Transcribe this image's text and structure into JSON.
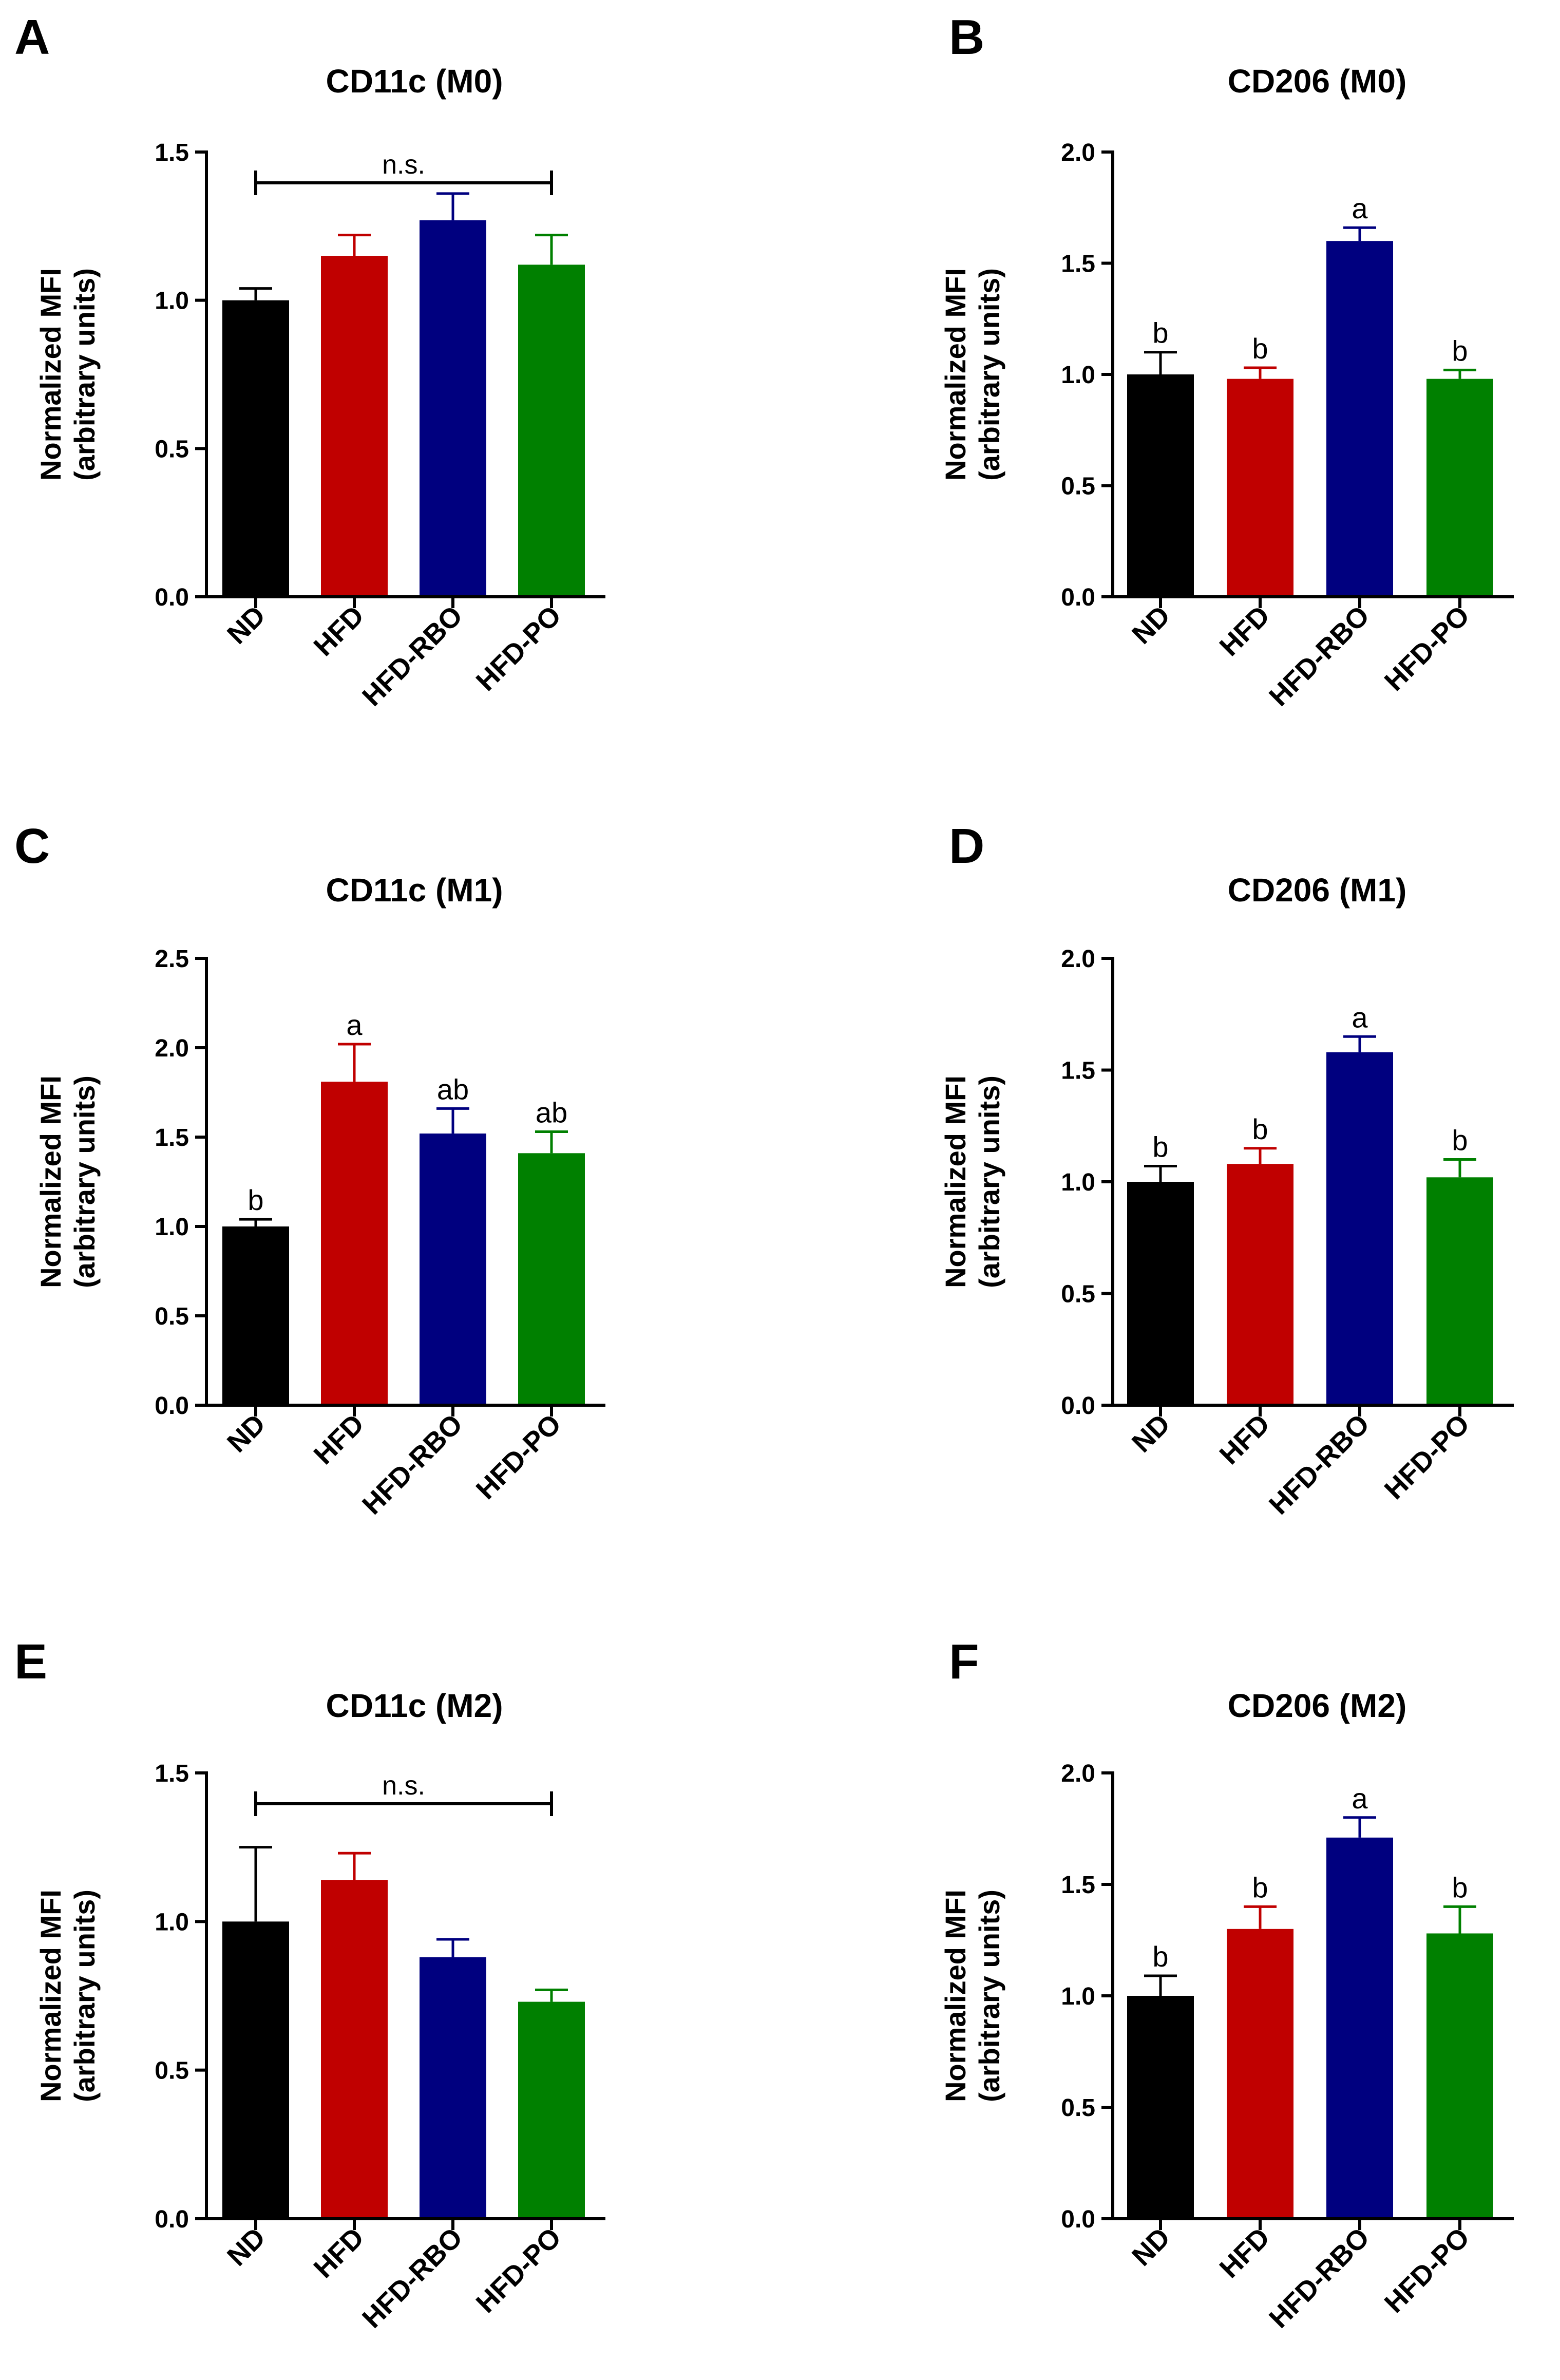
{
  "figure": {
    "panels": [
      "A",
      "B",
      "C",
      "D",
      "E",
      "F"
    ]
  },
  "colors": {
    "ND": "#000000",
    "HFD": "#c00000",
    "HFD-RBO": "#00007f",
    "HFD-PO": "#008000",
    "axis": "#000000"
  },
  "chart_data": [
    {
      "panel": "A",
      "type": "bar",
      "title": "CD11c (M0)",
      "ylabel": [
        "Normalized MFI",
        "(arbitrary units)"
      ],
      "categories": [
        "ND",
        "HFD",
        "HFD-RBO",
        "HFD-PO"
      ],
      "values": [
        1.0,
        1.15,
        1.27,
        1.12
      ],
      "errors": [
        0.04,
        0.07,
        0.09,
        0.1
      ],
      "ylim": [
        0,
        1.5
      ],
      "yticks": [
        "0.0",
        "0.5",
        "1.0",
        "1.5"
      ],
      "letters": [
        "",
        "",
        "",
        ""
      ],
      "bracket": "n.s."
    },
    {
      "panel": "B",
      "type": "bar",
      "title": "CD206 (M0)",
      "ylabel": [
        "Normalized MFI",
        "(arbitrary units)"
      ],
      "categories": [
        "ND",
        "HFD",
        "HFD-RBO",
        "HFD-PO"
      ],
      "values": [
        1.0,
        0.98,
        1.6,
        0.98
      ],
      "errors": [
        0.1,
        0.05,
        0.06,
        0.04
      ],
      "ylim": [
        0,
        2.0
      ],
      "yticks": [
        "0.0",
        "0.5",
        "1.0",
        "1.5",
        "2.0"
      ],
      "letters": [
        "b",
        "b",
        "a",
        "b"
      ],
      "bracket": ""
    },
    {
      "panel": "C",
      "type": "bar",
      "title": "CD11c (M1)",
      "ylabel": [
        "Normalized MFI",
        "(arbitrary units)"
      ],
      "categories": [
        "ND",
        "HFD",
        "HFD-RBO",
        "HFD-PO"
      ],
      "values": [
        1.0,
        1.81,
        1.52,
        1.41
      ],
      "errors": [
        0.04,
        0.21,
        0.14,
        0.12
      ],
      "ylim": [
        0,
        2.5
      ],
      "yticks": [
        "0.0",
        "0.5",
        "1.0",
        "1.5",
        "2.0",
        "2.5"
      ],
      "letters": [
        "b",
        "a",
        "ab",
        "ab"
      ],
      "bracket": ""
    },
    {
      "panel": "D",
      "type": "bar",
      "title": "CD206 (M1)",
      "ylabel": [
        "Normalized MFI",
        "(arbitrary units)"
      ],
      "categories": [
        "ND",
        "HFD",
        "HFD-RBO",
        "HFD-PO"
      ],
      "values": [
        1.0,
        1.08,
        1.58,
        1.02
      ],
      "errors": [
        0.07,
        0.07,
        0.07,
        0.08
      ],
      "ylim": [
        0,
        2.0
      ],
      "yticks": [
        "0.0",
        "0.5",
        "1.0",
        "1.5",
        "2.0"
      ],
      "letters": [
        "b",
        "b",
        "a",
        "b"
      ],
      "bracket": ""
    },
    {
      "panel": "E",
      "type": "bar",
      "title": "CD11c (M2)",
      "ylabel": [
        "Normalized MFI",
        "(arbitrary units)"
      ],
      "categories": [
        "ND",
        "HFD",
        "HFD-RBO",
        "HFD-PO"
      ],
      "values": [
        1.0,
        1.14,
        0.88,
        0.73
      ],
      "errors": [
        0.25,
        0.09,
        0.06,
        0.04
      ],
      "ylim": [
        0,
        1.5
      ],
      "yticks": [
        "0.0",
        "0.5",
        "1.0",
        "1.5"
      ],
      "letters": [
        "",
        "",
        "",
        ""
      ],
      "bracket": "n.s."
    },
    {
      "panel": "F",
      "type": "bar",
      "title": "CD206 (M2)",
      "ylabel": [
        "Normalized MFI",
        "(arbitrary units)"
      ],
      "categories": [
        "ND",
        "HFD",
        "HFD-RBO",
        "HFD-PO"
      ],
      "values": [
        1.0,
        1.3,
        1.71,
        1.28
      ],
      "errors": [
        0.09,
        0.1,
        0.09,
        0.12
      ],
      "ylim": [
        0,
        2.0
      ],
      "yticks": [
        "0.0",
        "0.5",
        "1.0",
        "1.5",
        "2.0"
      ],
      "letters": [
        "b",
        "b",
        "a",
        "b"
      ],
      "bracket": ""
    }
  ]
}
